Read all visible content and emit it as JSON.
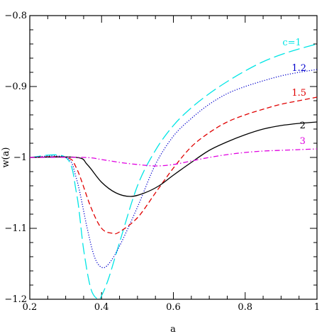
{
  "chart_data": {
    "type": "line",
    "xlabel": "a",
    "ylabel": "w(a)",
    "xlim": [
      0.2,
      1.0
    ],
    "ylim": [
      -1.2,
      -0.8
    ],
    "grid": false,
    "x_ticks": [
      0.2,
      0.4,
      0.6,
      0.8,
      1.0
    ],
    "x_tick_labels": [
      "0.2",
      "0.4",
      "0.6",
      "0.8",
      "1"
    ],
    "y_ticks": [
      -0.8,
      -0.9,
      -1.0,
      -1.1,
      -1.2
    ],
    "y_tick_labels": [
      "−0.8",
      "−0.9",
      "−1",
      "−1.1",
      "−1.2"
    ],
    "series": [
      {
        "name": "c=1",
        "color": "#00e5e5",
        "dash": "long-dash",
        "x": [
          0.2,
          0.3,
          0.33,
          0.35,
          0.37,
          0.39,
          0.4,
          0.42,
          0.45,
          0.5,
          0.55,
          0.6,
          0.65,
          0.7,
          0.75,
          0.8,
          0.85,
          0.9,
          0.95,
          1.0
        ],
        "y": [
          -1.0,
          -1.0,
          -1.05,
          -1.13,
          -1.185,
          -1.2,
          -1.195,
          -1.17,
          -1.12,
          -1.04,
          -0.99,
          -0.955,
          -0.93,
          -0.91,
          -0.893,
          -0.878,
          -0.865,
          -0.855,
          -0.847,
          -0.84
        ]
      },
      {
        "name": "1.2",
        "color": "#0000cc",
        "dash": "dotted",
        "x": [
          0.2,
          0.3,
          0.33,
          0.36,
          0.38,
          0.4,
          0.42,
          0.45,
          0.5,
          0.55,
          0.6,
          0.65,
          0.7,
          0.75,
          0.8,
          0.85,
          0.9,
          0.95,
          1.0
        ],
        "y": [
          -1.0,
          -1.0,
          -1.03,
          -1.1,
          -1.14,
          -1.155,
          -1.15,
          -1.125,
          -1.07,
          -1.01,
          -0.97,
          -0.945,
          -0.925,
          -0.91,
          -0.9,
          -0.892,
          -0.885,
          -0.88,
          -0.876
        ]
      },
      {
        "name": "1.5",
        "color": "#e00000",
        "dash": "short-dash",
        "x": [
          0.2,
          0.3,
          0.33,
          0.37,
          0.4,
          0.43,
          0.45,
          0.5,
          0.55,
          0.6,
          0.65,
          0.7,
          0.75,
          0.8,
          0.85,
          0.9,
          0.95,
          1.0
        ],
        "y": [
          -1.0,
          -1.0,
          -1.015,
          -1.07,
          -1.1,
          -1.107,
          -1.105,
          -1.085,
          -1.05,
          -1.015,
          -0.985,
          -0.965,
          -0.95,
          -0.94,
          -0.932,
          -0.925,
          -0.92,
          -0.915
        ]
      },
      {
        "name": "2",
        "color": "#000000",
        "dash": "solid",
        "x": [
          0.2,
          0.33,
          0.36,
          0.4,
          0.44,
          0.48,
          0.52,
          0.56,
          0.6,
          0.65,
          0.7,
          0.75,
          0.8,
          0.85,
          0.9,
          0.95,
          1.0
        ],
        "y": [
          -1.0,
          -1.0,
          -1.01,
          -1.035,
          -1.05,
          -1.055,
          -1.05,
          -1.04,
          -1.025,
          -1.007,
          -0.99,
          -0.978,
          -0.968,
          -0.96,
          -0.955,
          -0.952,
          -0.95
        ],
        "dummy": null
      },
      {
        "name": "3",
        "color": "#e000e0",
        "dash": "dash-dot",
        "x": [
          0.2,
          0.35,
          0.4,
          0.45,
          0.5,
          0.55,
          0.6,
          0.65,
          0.7,
          0.75,
          0.8,
          0.85,
          0.9,
          0.95,
          1.0
        ],
        "y": [
          -1.0,
          -1.0,
          -1.003,
          -1.007,
          -1.01,
          -1.012,
          -1.01,
          -1.005,
          -1.0,
          -0.996,
          -0.993,
          -0.991,
          -0.99,
          -0.989,
          -0.988
        ]
      }
    ],
    "curve_labels": [
      {
        "text": "c=1",
        "series": 0,
        "at": [
          0.93,
          -0.842
        ]
      },
      {
        "text": "1.2",
        "series": 1,
        "at": [
          0.95,
          -0.878
        ]
      },
      {
        "text": "1.5",
        "series": 2,
        "at": [
          0.95,
          -0.913
        ]
      },
      {
        "text": "2",
        "series": 3,
        "at": [
          0.96,
          -0.959
        ]
      },
      {
        "text": "3",
        "series": 4,
        "at": [
          0.96,
          -0.981
        ]
      }
    ]
  }
}
